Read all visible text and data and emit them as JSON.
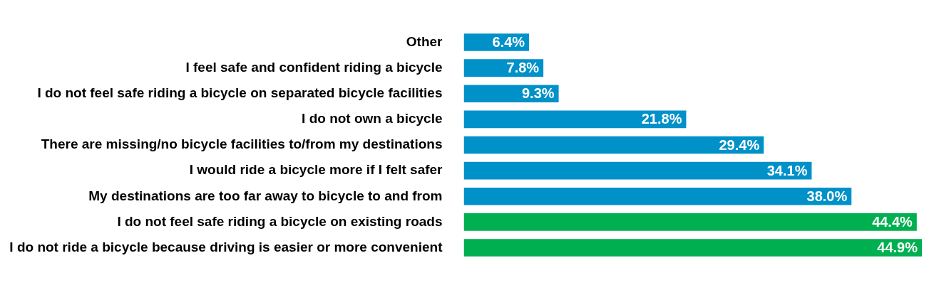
{
  "chart_data": {
    "type": "bar",
    "orientation": "horizontal",
    "categories": [
      "Other",
      "I feel safe and confident riding a bicycle",
      "I do not feel safe riding a bicycle on separated bicycle facilities",
      "I do not own a bicycle",
      "There are missing/no bicycle facilities to/from my destinations",
      "I would ride a bicycle more if I felt safer",
      "My destinations are too far away to bicycle to and from",
      "I do not feel safe riding a bicycle on existing roads",
      "I do not ride a bicycle because driving is easier or more convenient"
    ],
    "values": [
      6.4,
      7.8,
      9.3,
      21.8,
      29.4,
      34.1,
      38.0,
      44.4,
      44.9
    ],
    "value_labels": [
      "6.4%",
      "7.8%",
      "9.3%",
      "21.8%",
      "29.4%",
      "34.1%",
      "38.0%",
      "44.4%",
      "44.9%"
    ],
    "colors": [
      "#0091c9",
      "#0091c9",
      "#0091c9",
      "#0091c9",
      "#0091c9",
      "#0091c9",
      "#0091c9",
      "#00b050",
      "#00b050"
    ],
    "grid": false,
    "legend": false
  }
}
